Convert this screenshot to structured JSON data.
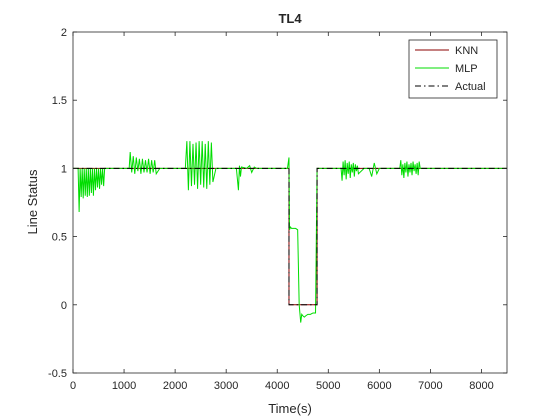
{
  "chart_data": {
    "type": "line",
    "title": "TL4",
    "xlabel": "Time(s)",
    "ylabel": "Line Status",
    "xlim": [
      0,
      8500
    ],
    "ylim": [
      -0.5,
      2
    ],
    "xticks": [
      0,
      1000,
      2000,
      3000,
      4000,
      5000,
      6000,
      7000,
      8000
    ],
    "yticks": [
      -0.5,
      0,
      0.5,
      1,
      1.5,
      2
    ],
    "xtick_labels": [
      "0",
      "1000",
      "2000",
      "3000",
      "4000",
      "5000",
      "6000",
      "7000",
      "8000"
    ],
    "ytick_labels": [
      "-0.5",
      "0",
      "0.5",
      "1",
      "1.5",
      "2"
    ],
    "grid": false,
    "legend_position": "top-right",
    "series": [
      {
        "name": "KNN",
        "color": "#8b0000",
        "style": "solid",
        "x": [
          0,
          4230,
          4230,
          4780,
          4780,
          8500
        ],
        "y": [
          1,
          1,
          0,
          0,
          1,
          1
        ]
      },
      {
        "name": "MLP",
        "color": "#00dd00",
        "style": "solid",
        "x": [
          0,
          100,
          120,
          140,
          160,
          180,
          200,
          220,
          240,
          260,
          280,
          300,
          320,
          340,
          360,
          380,
          400,
          420,
          440,
          460,
          480,
          500,
          520,
          540,
          560,
          580,
          600,
          620,
          700,
          900,
          1100,
          1120,
          1150,
          1180,
          1210,
          1240,
          1270,
          1300,
          1330,
          1360,
          1390,
          1420,
          1450,
          1480,
          1510,
          1540,
          1570,
          1600,
          1630,
          1700,
          2000,
          2200,
          2230,
          2260,
          2290,
          2320,
          2350,
          2380,
          2410,
          2440,
          2470,
          2500,
          2530,
          2560,
          2590,
          2620,
          2650,
          2680,
          2710,
          2740,
          2800,
          3000,
          3200,
          3240,
          3260,
          3280,
          3300,
          3400,
          3460,
          3500,
          3550,
          3600,
          3700,
          3900,
          4100,
          4200,
          4230,
          4240,
          4260,
          4280,
          4300,
          4330,
          4360,
          4400,
          4430,
          4460,
          4480,
          4500,
          4530,
          4560,
          4600,
          4650,
          4700,
          4750,
          4780,
          4800,
          4900,
          5100,
          5250,
          5270,
          5290,
          5310,
          5330,
          5350,
          5370,
          5390,
          5410,
          5430,
          5450,
          5470,
          5490,
          5510,
          5530,
          5550,
          5570,
          5590,
          5700,
          5800,
          5850,
          5900,
          5950,
          6000,
          6100,
          6300,
          6400,
          6420,
          6440,
          6460,
          6480,
          6500,
          6520,
          6540,
          6560,
          6580,
          6600,
          6620,
          6640,
          6660,
          6680,
          6700,
          6720,
          6740,
          6760,
          6780,
          6800,
          6900,
          7000,
          7500,
          8000,
          8500
        ],
        "y": [
          1,
          1,
          0.68,
          1.0,
          0.79,
          1.0,
          0.78,
          1.0,
          0.8,
          1.0,
          0.79,
          1.0,
          0.8,
          1.0,
          0.82,
          1.0,
          0.8,
          1.0,
          0.84,
          1.0,
          0.86,
          1.0,
          0.85,
          1.0,
          0.88,
          1.0,
          0.87,
          1.0,
          1,
          1,
          1,
          1.12,
          0.97,
          1.09,
          0.96,
          1.08,
          0.98,
          1.07,
          0.96,
          1.07,
          0.97,
          1.06,
          0.97,
          1.07,
          0.96,
          1.06,
          0.97,
          1.06,
          0.96,
          1,
          1,
          1,
          1.2,
          0.84,
          1.2,
          0.87,
          1.18,
          0.88,
          1.19,
          0.85,
          1.2,
          0.88,
          1.2,
          0.86,
          1.18,
          0.85,
          1.2,
          0.88,
          1.19,
          0.9,
          1,
          1,
          1,
          0.84,
          1.02,
          0.94,
          1.01,
          1,
          1.02,
          0.97,
          1.01,
          1,
          1,
          1,
          1,
          1,
          1.08,
          0.55,
          0.57,
          0.56,
          0.56,
          0.56,
          0.56,
          0.55,
          0.0,
          -0.13,
          -0.07,
          -0.08,
          -0.09,
          -0.08,
          -0.07,
          -0.07,
          -0.06,
          -0.06,
          1.0,
          1,
          1,
          1,
          1,
          0.91,
          1.05,
          0.95,
          1.06,
          0.92,
          1.04,
          0.96,
          1.05,
          0.93,
          1.03,
          0.97,
          1.04,
          0.94,
          1.03,
          0.98,
          1.02,
          0.96,
          1,
          1,
          0.94,
          1.04,
          0.96,
          1,
          1,
          1,
          1,
          1.06,
          0.95,
          1.03,
          0.93,
          1.04,
          0.97,
          1.05,
          0.94,
          1.03,
          0.97,
          1.04,
          0.95,
          1.05,
          0.98,
          1.03,
          0.96,
          1.04,
          0.95,
          1.05,
          1.0,
          1,
          1,
          1,
          1,
          1
        ]
      },
      {
        "name": "Actual",
        "color": "#000000",
        "style": "dashdot",
        "x": [
          0,
          4230,
          4230,
          4780,
          4780,
          8500
        ],
        "y": [
          1,
          1,
          0,
          0,
          1,
          1
        ]
      }
    ]
  }
}
